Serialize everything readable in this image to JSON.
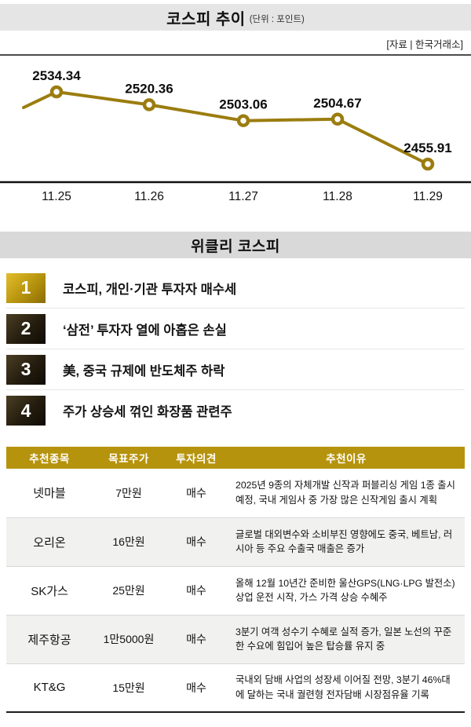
{
  "header": {
    "title": "코스피 추이",
    "unit": "(단위 : 포인트)",
    "source": "[자료 | 한국거래소]"
  },
  "chart_data": {
    "type": "line",
    "title": "코스피 추이",
    "unit": "포인트",
    "x": [
      "11.25",
      "11.26",
      "11.27",
      "11.28",
      "11.29"
    ],
    "values": [
      2534.34,
      2520.36,
      2503.06,
      2504.67,
      2455.91
    ],
    "ylim": [
      2450,
      2545
    ],
    "line_color": "#9b7d0f",
    "marker_style": "ring",
    "grid": false,
    "legend": "none"
  },
  "weekly": {
    "title": "위클리 코스피",
    "items": [
      {
        "rank": "1",
        "text": "코스피, 개인·기관 투자자 매수세"
      },
      {
        "rank": "2",
        "text": "‘삼전’ 투자자 열에 아홉은 손실"
      },
      {
        "rank": "3",
        "text": "美, 중국 규제에 반도체주 하락"
      },
      {
        "rank": "4",
        "text": "주가 상승세 꺾인 화장품 관련주"
      }
    ]
  },
  "table": {
    "headers": [
      "추천종목",
      "목표주가",
      "투자의견",
      "추천이유"
    ],
    "rows": [
      {
        "name": "넷마블",
        "price": "7만원",
        "opinion": "매수",
        "reason": "2025년 9종의 자체개발 신작과 퍼블리싱 게임 1종 출시 예정, 국내 게임사 중 가장 많은 신작게임 출시 계획"
      },
      {
        "name": "오리온",
        "price": "16만원",
        "opinion": "매수",
        "reason": "글로벌 대외변수와 소비부진 영향에도 중국, 베트남, 러시아 등 주요 수출국 매출은 증가"
      },
      {
        "name": "SK가스",
        "price": "25만원",
        "opinion": "매수",
        "reason": "올해 12월 10년간 준비한 울산GPS(LNG·LPG 발전소) 상업 운전 시작, 가스 가격 상승 수혜주"
      },
      {
        "name": "제주항공",
        "price": "1만5000원",
        "opinion": "매수",
        "reason": "3분기 여객 성수기 수혜로 실적 증가, 일본 노선의 꾸준한 수요에 힘입어 높은 탑승률 유지 중"
      },
      {
        "name": "KT&G",
        "price": "15만원",
        "opinion": "매수",
        "reason": "국내외 담배 사업의 성장세 이어질 전망, 3분기 46%대에 달하는 국내 궐련형 전자담배 시장점유율 기록"
      }
    ]
  },
  "colors": {
    "gold": "#b6930d",
    "line": "#9b7d0f",
    "header_bg": "#e5e5e5",
    "weekly_bg": "#d9d9d9",
    "alt_row": "#f1f1f0"
  }
}
